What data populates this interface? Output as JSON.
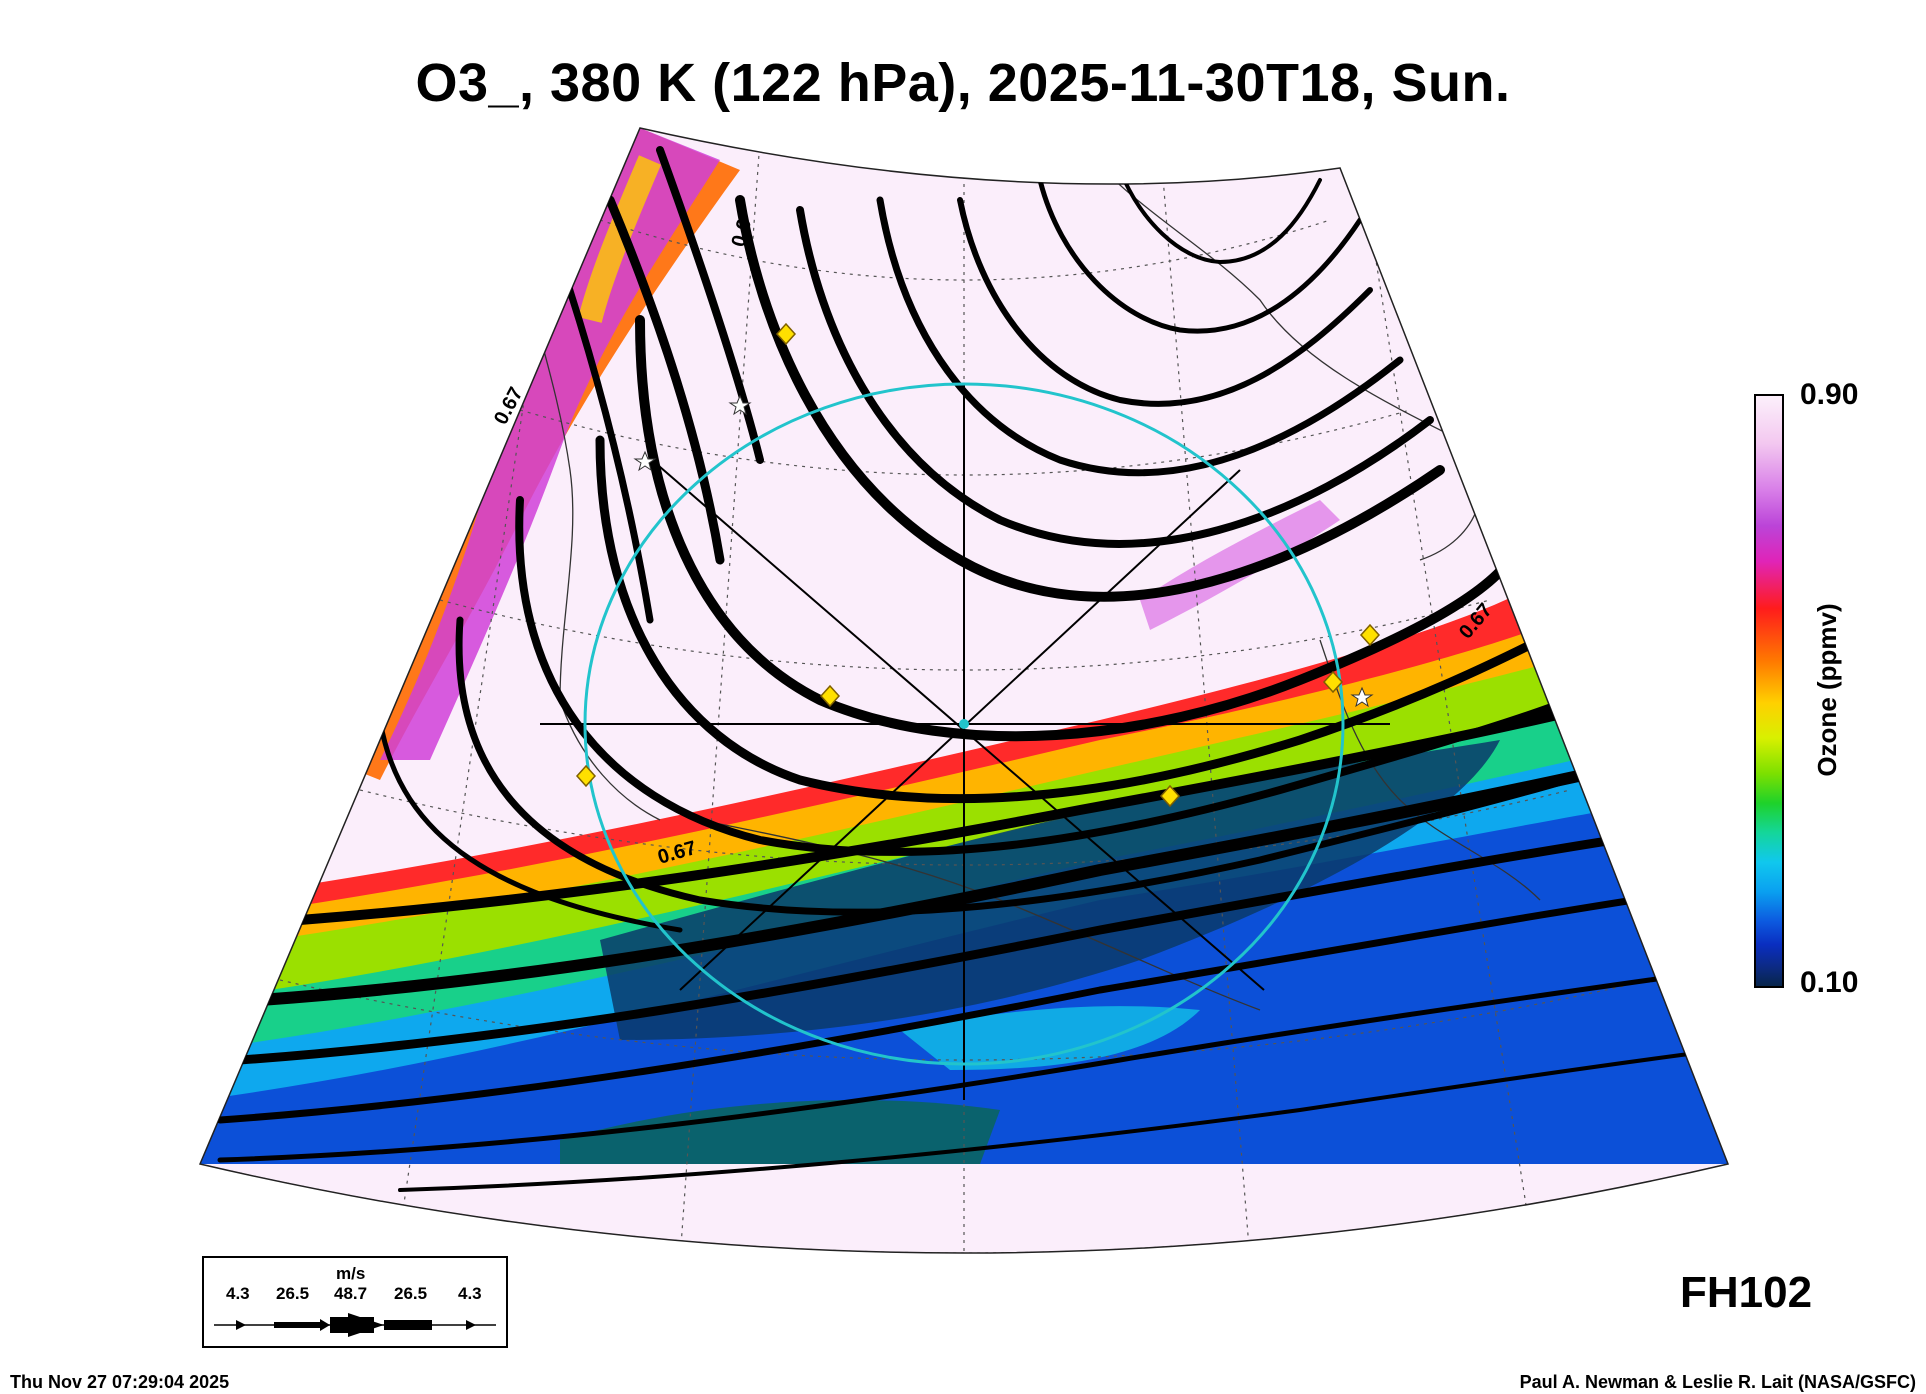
{
  "title": "O3_, 380 K (122 hPa), 2025-11-30T18, Sun.",
  "colorbar": {
    "max": "0.90",
    "min": "0.10",
    "label": "Ozone (ppmv)"
  },
  "contour_labels": [
    "0.67",
    "0.67",
    "0.67",
    "0.6"
  ],
  "forecast_hour": "FH102",
  "legend": {
    "unit": "m/s",
    "speeds": [
      "4.3",
      "26.5",
      "48.7",
      "26.5",
      "4.3"
    ]
  },
  "footer": {
    "timestamp": "Thu Nov 27 07:29:04 2025",
    "credit": "Paul A. Newman & Leslie R. Lait (NASA/GSFC)"
  },
  "colors": {
    "circle": "#22c4cc",
    "marker": "#ffe000",
    "streamline": "#000000"
  },
  "icons": [
    "wind-speed-arrow-icon",
    "diamond-marker-icon",
    "star-marker-icon"
  ]
}
